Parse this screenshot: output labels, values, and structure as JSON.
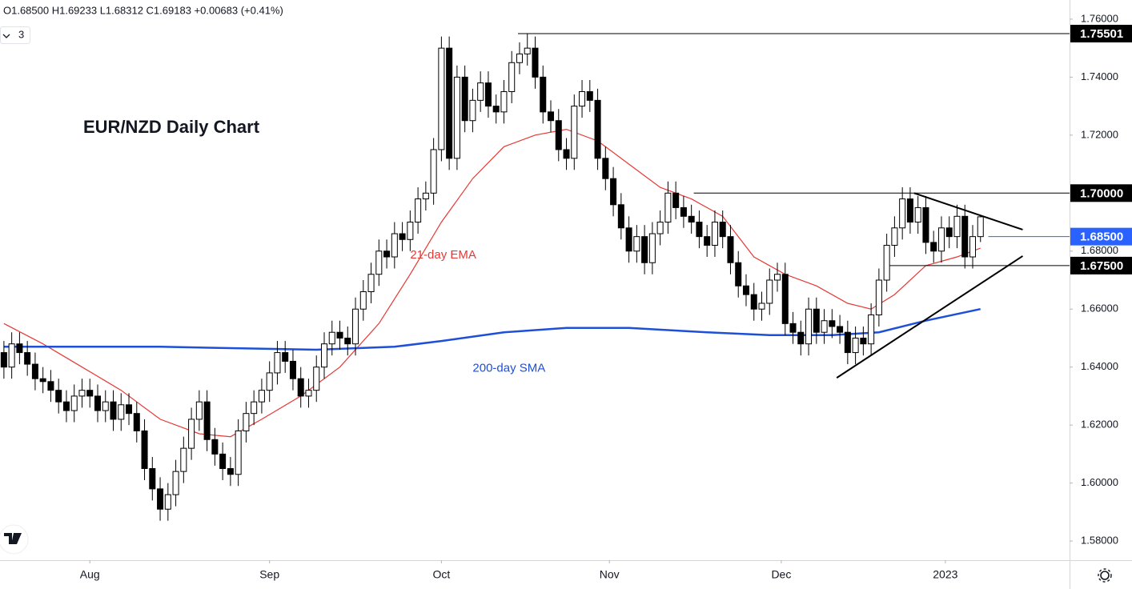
{
  "chart_data": {
    "type": "candlestick",
    "header": "O1.68500 H1.69233 L1.68312 C1.69183 +0.00683 (+0.41%)",
    "indicator_count": "3",
    "title": "EUR/NZD Daily Chart",
    "color_up": "#ffffff",
    "color_down": "#000000",
    "open": [
      1.645,
      1.64,
      1.648,
      1.645,
      1.641,
      1.636,
      1.635,
      1.632,
      1.628,
      1.625,
      1.63,
      1.632,
      1.63,
      1.625,
      1.628,
      1.622,
      1.627,
      1.624,
      1.618,
      1.605,
      1.598,
      1.591,
      1.596,
      1.604,
      1.612,
      1.622,
      1.628,
      1.615,
      1.61,
      1.605,
      1.603,
      1.618,
      1.624,
      1.628,
      1.632,
      1.638,
      1.645,
      1.642,
      1.636,
      1.63,
      1.632,
      1.64,
      1.648,
      1.652,
      1.65,
      1.648,
      1.66,
      1.666,
      1.672,
      1.68,
      1.678,
      1.686,
      1.684,
      1.69,
      1.698,
      1.7,
      1.715,
      1.75,
      1.712,
      1.74,
      1.725,
      1.732,
      1.738,
      1.73,
      1.728,
      1.735,
      1.745,
      1.748,
      1.75,
      1.74,
      1.728,
      1.725,
      1.715,
      1.712,
      1.73,
      1.735,
      1.732,
      1.712,
      1.705,
      1.696,
      1.688,
      1.68,
      1.685,
      1.676,
      1.686,
      1.69,
      1.7,
      1.695,
      1.692,
      1.69,
      1.685,
      1.682,
      1.69,
      1.685,
      1.676,
      1.668,
      1.665,
      1.66,
      1.662,
      1.67,
      1.672,
      1.655,
      1.652,
      1.648,
      1.66,
      1.652,
      1.656,
      1.654,
      1.652,
      1.645,
      1.65,
      1.648,
      1.658,
      1.67,
      1.682,
      1.688,
      1.698,
      1.69,
      1.695,
      1.683,
      1.68,
      1.688,
      1.685,
      1.692,
      1.678,
      1.685
    ],
    "high": [
      1.649,
      1.652,
      1.652,
      1.649,
      1.645,
      1.64,
      1.639,
      1.636,
      1.632,
      1.634,
      1.636,
      1.636,
      1.634,
      1.632,
      1.632,
      1.631,
      1.631,
      1.628,
      1.622,
      1.609,
      1.602,
      1.6,
      1.608,
      1.616,
      1.626,
      1.632,
      1.632,
      1.619,
      1.614,
      1.609,
      1.622,
      1.628,
      1.632,
      1.636,
      1.642,
      1.649,
      1.649,
      1.646,
      1.64,
      1.636,
      1.644,
      1.652,
      1.656,
      1.656,
      1.654,
      1.664,
      1.67,
      1.676,
      1.684,
      1.684,
      1.69,
      1.69,
      1.694,
      1.702,
      1.704,
      1.719,
      1.754,
      1.754,
      1.744,
      1.744,
      1.736,
      1.742,
      1.742,
      1.734,
      1.739,
      1.749,
      1.752,
      1.75501,
      1.754,
      1.744,
      1.732,
      1.729,
      1.719,
      1.734,
      1.739,
      1.739,
      1.736,
      1.716,
      1.709,
      1.7,
      1.692,
      1.689,
      1.689,
      1.69,
      1.694,
      1.704,
      1.704,
      1.699,
      1.696,
      1.694,
      1.689,
      1.694,
      1.694,
      1.689,
      1.68,
      1.672,
      1.669,
      1.666,
      1.674,
      1.676,
      1.676,
      1.659,
      1.656,
      1.664,
      1.664,
      1.66,
      1.66,
      1.658,
      1.656,
      1.654,
      1.654,
      1.662,
      1.674,
      1.686,
      1.692,
      1.702,
      1.702,
      1.699,
      1.699,
      1.687,
      1.692,
      1.692,
      1.696,
      1.696,
      1.689,
      1.69233
    ],
    "low": [
      1.636,
      1.636,
      1.641,
      1.637,
      1.632,
      1.631,
      1.628,
      1.624,
      1.621,
      1.621,
      1.626,
      1.626,
      1.621,
      1.621,
      1.618,
      1.618,
      1.62,
      1.614,
      1.601,
      1.594,
      1.587,
      1.587,
      1.592,
      1.6,
      1.608,
      1.618,
      1.611,
      1.606,
      1.601,
      1.599,
      1.599,
      1.614,
      1.62,
      1.624,
      1.628,
      1.634,
      1.638,
      1.632,
      1.626,
      1.626,
      1.628,
      1.636,
      1.644,
      1.646,
      1.644,
      1.644,
      1.656,
      1.662,
      1.668,
      1.674,
      1.674,
      1.68,
      1.68,
      1.686,
      1.694,
      1.696,
      1.711,
      1.708,
      1.708,
      1.721,
      1.721,
      1.728,
      1.726,
      1.724,
      1.724,
      1.731,
      1.741,
      1.744,
      1.736,
      1.724,
      1.721,
      1.711,
      1.708,
      1.708,
      1.726,
      1.728,
      1.708,
      1.701,
      1.692,
      1.684,
      1.676,
      1.676,
      1.672,
      1.672,
      1.682,
      1.686,
      1.691,
      1.688,
      1.686,
      1.681,
      1.678,
      1.678,
      1.681,
      1.672,
      1.664,
      1.661,
      1.656,
      1.656,
      1.658,
      1.666,
      1.651,
      1.648,
      1.644,
      1.644,
      1.648,
      1.648,
      1.65,
      1.648,
      1.641,
      1.641,
      1.644,
      1.644,
      1.654,
      1.666,
      1.678,
      1.684,
      1.686,
      1.686,
      1.679,
      1.676,
      1.676,
      1.681,
      1.681,
      1.674,
      1.674,
      1.68312
    ],
    "close": [
      1.64,
      1.648,
      1.645,
      1.641,
      1.636,
      1.635,
      1.632,
      1.628,
      1.625,
      1.63,
      1.632,
      1.63,
      1.625,
      1.628,
      1.622,
      1.627,
      1.624,
      1.618,
      1.605,
      1.598,
      1.591,
      1.596,
      1.604,
      1.612,
      1.622,
      1.628,
      1.615,
      1.61,
      1.605,
      1.603,
      1.618,
      1.624,
      1.628,
      1.632,
      1.638,
      1.645,
      1.642,
      1.636,
      1.63,
      1.632,
      1.64,
      1.648,
      1.652,
      1.65,
      1.648,
      1.66,
      1.666,
      1.672,
      1.68,
      1.678,
      1.686,
      1.684,
      1.69,
      1.698,
      1.7,
      1.715,
      1.75,
      1.712,
      1.74,
      1.725,
      1.732,
      1.738,
      1.73,
      1.728,
      1.735,
      1.745,
      1.748,
      1.75,
      1.74,
      1.728,
      1.725,
      1.715,
      1.712,
      1.73,
      1.735,
      1.732,
      1.712,
      1.705,
      1.696,
      1.688,
      1.68,
      1.685,
      1.676,
      1.686,
      1.69,
      1.7,
      1.695,
      1.692,
      1.69,
      1.685,
      1.682,
      1.69,
      1.685,
      1.676,
      1.668,
      1.665,
      1.66,
      1.662,
      1.67,
      1.672,
      1.655,
      1.652,
      1.648,
      1.66,
      1.652,
      1.656,
      1.654,
      1.652,
      1.645,
      1.65,
      1.648,
      1.658,
      1.67,
      1.682,
      1.688,
      1.698,
      1.69,
      1.695,
      1.683,
      1.68,
      1.688,
      1.685,
      1.692,
      1.678,
      1.685,
      1.69183
    ],
    "lines": [
      {
        "name": "21-day EMA",
        "color": "#e53935",
        "label_x": 52,
        "label_y": 1.6785,
        "x": [
          0,
          5,
          10,
          15,
          20,
          25,
          29,
          33,
          38,
          43,
          48,
          52,
          56,
          60,
          64,
          68,
          72,
          76,
          80,
          84,
          88,
          92,
          96,
          100,
          104,
          108,
          111,
          114,
          118,
          122,
          125
        ],
        "values": [
          1.655,
          1.648,
          1.64,
          1.632,
          1.622,
          1.617,
          1.616,
          1.622,
          1.63,
          1.64,
          1.655,
          1.672,
          1.69,
          1.705,
          1.716,
          1.72,
          1.722,
          1.718,
          1.71,
          1.702,
          1.698,
          1.692,
          1.678,
          1.672,
          1.668,
          1.662,
          1.66,
          1.665,
          1.675,
          1.678,
          1.681
        ]
      },
      {
        "name": "200-day SMA",
        "color": "#1e4fd8",
        "label_x": 60,
        "label_y": 1.6395,
        "x": [
          0,
          20,
          40,
          50,
          56,
          64,
          72,
          80,
          90,
          98,
          106,
          112,
          118,
          125
        ],
        "values": [
          1.647,
          1.647,
          1.646,
          1.647,
          1.649,
          1.652,
          1.6535,
          1.6535,
          1.652,
          1.651,
          1.651,
          1.652,
          1.656,
          1.66
        ]
      }
    ],
    "levels": [
      {
        "value": 1.75501,
        "label": "1.75501",
        "from": 65.8,
        "color": "#000000"
      },
      {
        "value": 1.7,
        "label": "1.70000",
        "from": 88.3,
        "color": "#000000"
      },
      {
        "value": 1.685,
        "label": "1.68500",
        "from": 126,
        "color": "#2962ff"
      },
      {
        "value": 1.675,
        "label": "1.67500",
        "from": 113.4,
        "color": "#000000"
      }
    ],
    "trendlines": [
      {
        "x": [
          116.5,
          130.4
        ],
        "values": [
          1.7,
          1.6874
        ]
      },
      {
        "x": [
          106.6,
          130.4
        ],
        "values": [
          1.6363,
          1.6783
        ]
      }
    ],
    "ylim": [
      1.5734,
      1.7666
    ],
    "yticks": [
      {
        "value": 1.58,
        "label": "1.58000"
      },
      {
        "value": 1.6,
        "label": "1.60000"
      },
      {
        "value": 1.62,
        "label": "1.62000"
      },
      {
        "value": 1.64,
        "label": "1.64000"
      },
      {
        "value": 1.66,
        "label": "1.66000"
      },
      {
        "value": 1.68,
        "label": "1.68000"
      },
      {
        "value": 1.7,
        "label": "1.70000"
      },
      {
        "value": 1.72,
        "label": "1.72000"
      },
      {
        "value": 1.74,
        "label": "1.74000"
      },
      {
        "value": 1.76,
        "label": "1.76000"
      }
    ],
    "xlim": [
      -0.5,
      136.4
    ],
    "xticks": [
      {
        "value": 11,
        "label": "Aug"
      },
      {
        "value": 34,
        "label": "Sep"
      },
      {
        "value": 56,
        "label": "Oct"
      },
      {
        "value": 77.5,
        "label": "Nov"
      },
      {
        "value": 99.5,
        "label": "Dec"
      },
      {
        "value": 120.5,
        "label": "2023"
      }
    ]
  }
}
